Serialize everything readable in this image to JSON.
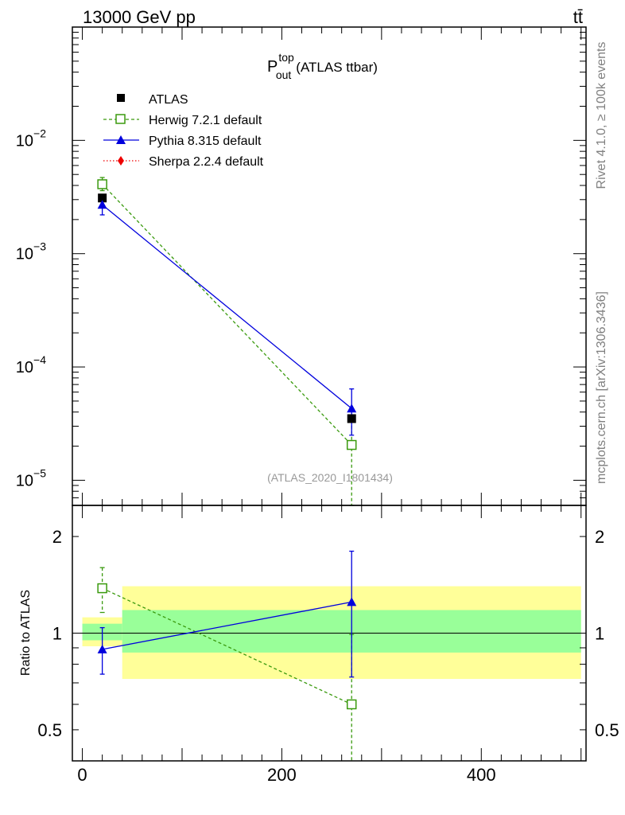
{
  "header": {
    "energy_label": "13000 GeV pp",
    "process_label": "tt̄"
  },
  "side": {
    "rivet_label": "Rivet 4.1.0, ≥ 100k events",
    "mcplots_label": "mcplots.cern.ch [arXiv:1306.3436]"
  },
  "chart_data": [
    {
      "type": "scatter",
      "panel": "main",
      "title": "P_out^top (ATLAS ttbar)",
      "title_main": "P",
      "title_sup": "top",
      "title_sub": "out",
      "title_rest": "(ATLAS ttbar)",
      "watermark": "(ATLAS_2020_I1801434)",
      "yscale": "log",
      "ylim": [
        6e-06,
        0.1
      ],
      "xlim": [
        -10,
        505
      ],
      "ytick_labels": [
        {
          "value": 0.01,
          "base": "10",
          "exp": "−2"
        },
        {
          "value": 0.001,
          "base": "10",
          "exp": "−3"
        },
        {
          "value": 0.0001,
          "base": "10",
          "exp": "−4"
        },
        {
          "value": 1e-05,
          "base": "10",
          "exp": "−5"
        }
      ],
      "legend": {
        "position": "top-left",
        "entries": [
          {
            "label": "ATLAS",
            "color": "#000000",
            "marker": "square"
          },
          {
            "label": "Herwig 7.2.1 default",
            "color": "#3a9a0e",
            "marker": "open-square",
            "dash": "dashed"
          },
          {
            "label": "Pythia 8.315 default",
            "color": "#0000dd",
            "marker": "triangle",
            "dash": "solid"
          },
          {
            "label": "Sherpa 2.2.4 default",
            "color": "#ee0000",
            "marker": "diamond",
            "dash": "dotted"
          }
        ]
      },
      "series": [
        {
          "name": "ATLAS",
          "color": "#000000",
          "marker": "square",
          "line": "none",
          "points": [
            {
              "x": 20,
              "y": 0.0031
            },
            {
              "x": 270,
              "y": 3.5e-05
            }
          ]
        },
        {
          "name": "Herwig 7.2.1 default",
          "color": "#3a9a0e",
          "marker": "open-square",
          "line": "dashed",
          "points": [
            {
              "x": 20,
              "y": 0.0041,
              "ylo": 0.0036,
              "yhi": 0.0047
            },
            {
              "x": 270,
              "y": 2.05e-05,
              "ylo": 6e-06,
              "yhi": 3.4e-05
            }
          ]
        },
        {
          "name": "Pythia 8.315 default",
          "color": "#0000dd",
          "marker": "triangle",
          "line": "solid",
          "points": [
            {
              "x": 20,
              "y": 0.0027,
              "ylo": 0.0022,
              "yhi": 0.0031
            },
            {
              "x": 270,
              "y": 4.3e-05,
              "ylo": 2.5e-05,
              "yhi": 6.4e-05
            }
          ]
        }
      ]
    },
    {
      "type": "scatter",
      "panel": "ratio",
      "ylabel": "Ratio to ATLAS",
      "yscale": "log",
      "ylim": [
        0.4,
        2.5
      ],
      "xlim": [
        -10,
        505
      ],
      "ytick_labels": [
        {
          "value": 2,
          "label": "2"
        },
        {
          "value": 1,
          "label": "1"
        },
        {
          "value": 0.5,
          "label": "0.5"
        }
      ],
      "xtick_labels": [
        {
          "value": 0,
          "label": "0"
        },
        {
          "value": 200,
          "label": "200"
        },
        {
          "value": 400,
          "label": "400"
        }
      ],
      "reference_line": 1,
      "bands": [
        {
          "x0": 0,
          "x1": 40,
          "inner": [
            0.95,
            1.07
          ],
          "outer": [
            0.91,
            1.12
          ]
        },
        {
          "x0": 40,
          "x1": 500,
          "inner": [
            0.87,
            1.18
          ],
          "outer": [
            0.72,
            1.4
          ]
        }
      ],
      "band_colors": {
        "inner": "#99ff99",
        "outer": "#ffff99"
      },
      "series": [
        {
          "name": "Herwig 7.2.1 default",
          "color": "#3a9a0e",
          "marker": "open-square",
          "line": "dashed",
          "points": [
            {
              "x": 20,
              "y": 1.38,
              "ylo": 1.16,
              "yhi": 1.6
            },
            {
              "x": 270,
              "y": 0.6,
              "ylo": 0.33,
              "yhi": 0.99
            }
          ]
        },
        {
          "name": "Pythia 8.315 default",
          "color": "#0000dd",
          "marker": "triangle",
          "line": "solid",
          "points": [
            {
              "x": 20,
              "y": 0.89,
              "ylo": 0.745,
              "yhi": 1.04
            },
            {
              "x": 270,
              "y": 1.25,
              "ylo": 0.73,
              "yhi": 1.8
            }
          ]
        }
      ]
    }
  ]
}
